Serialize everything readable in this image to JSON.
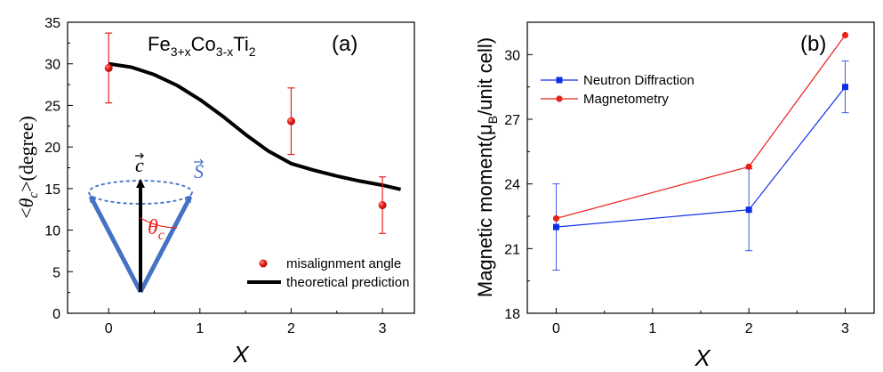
{
  "chart_data": [
    {
      "type": "scatter",
      "panel_label": "(a)",
      "title_main": "Fe",
      "title_sub1": "3+x",
      "title_mid": "Co",
      "title_sub2": "3-x",
      "title_end": "Ti",
      "title_sub3": "2",
      "xlabel": "X",
      "ylabel_open": "<",
      "ylabel_theta": "θ",
      "ylabel_sub": "c",
      "ylabel_close": ">(degree)",
      "xlim": [
        -0.45,
        3.35
      ],
      "ylim": [
        0,
        35
      ],
      "xticks": [
        "0",
        "1",
        "2",
        "3"
      ],
      "yticks": [
        "0",
        "5",
        "10",
        "15",
        "20",
        "25",
        "30",
        "35"
      ],
      "series": [
        {
          "name": "misalignment angle",
          "color": "#e8211b",
          "x": [
            0,
            2,
            3
          ],
          "y": [
            29.5,
            23.1,
            13.0
          ],
          "yerr": [
            4.2,
            4.0,
            3.4
          ]
        },
        {
          "name": "theoretical prediction",
          "color": "#000000",
          "x": [
            0,
            0.25,
            0.5,
            0.75,
            1.0,
            1.25,
            1.5,
            1.75,
            2.0,
            2.25,
            2.5,
            2.75,
            3.0,
            3.2
          ],
          "y": [
            30.0,
            29.6,
            28.7,
            27.4,
            25.7,
            23.7,
            21.5,
            19.5,
            18.0,
            17.2,
            16.5,
            15.9,
            15.4,
            14.9
          ]
        }
      ],
      "inset": {
        "c_label": "c",
        "s_label": "S",
        "theta_label": "θ",
        "theta_sub": "c",
        "c_color": "#000000",
        "s_color": "#4472c4",
        "theta_color": "#e8211b"
      }
    },
    {
      "type": "line",
      "panel_label": "(b)",
      "xlabel": "X",
      "ylabel_main": "Magnetic moment(μ",
      "ylabel_sub": "B",
      "ylabel_end": "/unit cell)",
      "xlim": [
        -0.3,
        3.3
      ],
      "ylim": [
        18,
        31.5
      ],
      "xticks": [
        "0",
        "1",
        "2",
        "3"
      ],
      "yticks": [
        "18",
        "21",
        "24",
        "27",
        "30"
      ],
      "series": [
        {
          "name": "Neutron Diffraction",
          "color": "#0c2fe6",
          "marker": "square",
          "x": [
            0,
            2,
            3
          ],
          "y": [
            22.0,
            22.8,
            28.5
          ],
          "yerr": [
            2.0,
            1.9,
            1.2
          ]
        },
        {
          "name": "Magnetometry",
          "color": "#e8211b",
          "marker": "circle",
          "x": [
            0,
            2,
            3
          ],
          "y": [
            22.4,
            24.8,
            30.9
          ]
        }
      ]
    }
  ]
}
